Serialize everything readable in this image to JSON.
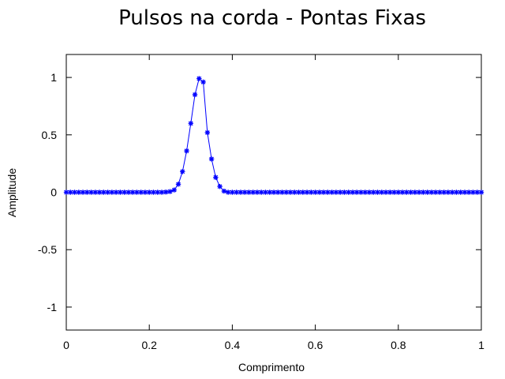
{
  "chart_data": {
    "type": "line",
    "title": "Pulsos na corda - Pontas Fixas",
    "xlabel": "Comprimento",
    "ylabel": "Amplitude",
    "xlim": [
      0,
      1
    ],
    "ylim": [
      -1.2,
      1.2
    ],
    "xticks": [
      0,
      0.2,
      0.4,
      0.6,
      0.8,
      1
    ],
    "xtick_labels": [
      "0",
      "0.2",
      "0.4",
      "0.6",
      "0.8",
      "1"
    ],
    "yticks": [
      -1,
      -0.5,
      0,
      0.5,
      1
    ],
    "ytick_labels": [
      "-1",
      "-0.5",
      "0",
      "0.5",
      "1"
    ],
    "grid": false,
    "series": [
      {
        "color": "#0000ff",
        "marker": "star",
        "x": [
          0,
          0.01,
          0.02,
          0.03,
          0.04,
          0.05,
          0.06,
          0.07,
          0.08,
          0.09,
          0.1,
          0.11,
          0.12,
          0.13,
          0.14,
          0.15,
          0.16,
          0.17,
          0.18,
          0.19,
          0.2,
          0.21,
          0.22,
          0.23,
          0.24,
          0.25,
          0.26,
          0.27,
          0.28,
          0.29,
          0.3,
          0.31,
          0.32,
          0.33,
          0.34,
          0.35,
          0.36,
          0.37,
          0.38,
          0.39,
          0.4,
          0.41,
          0.42,
          0.43,
          0.44,
          0.45,
          0.46,
          0.47,
          0.48,
          0.49,
          0.5,
          0.51,
          0.52,
          0.53,
          0.54,
          0.55,
          0.56,
          0.57,
          0.58,
          0.59,
          0.6,
          0.61,
          0.62,
          0.63,
          0.64,
          0.65,
          0.66,
          0.67,
          0.68,
          0.69,
          0.7,
          0.71,
          0.72,
          0.73,
          0.74,
          0.75,
          0.76,
          0.77,
          0.78,
          0.79,
          0.8,
          0.81,
          0.82,
          0.83,
          0.84,
          0.85,
          0.86,
          0.87,
          0.88,
          0.89,
          0.9,
          0.91,
          0.92,
          0.93,
          0.94,
          0.95,
          0.96,
          0.97,
          0.98,
          0.99,
          1
        ],
        "y": [
          0,
          0,
          0,
          0,
          0,
          0,
          0,
          0,
          0,
          0,
          0,
          0,
          0,
          0,
          0,
          0,
          0,
          0,
          0,
          0,
          0,
          0,
          0,
          0,
          0.002,
          0.006,
          0.02,
          0.07,
          0.18,
          0.36,
          0.6,
          0.85,
          0.99,
          0.96,
          0.52,
          0.29,
          0.13,
          0.05,
          0.01,
          0,
          0,
          0,
          0,
          0,
          0,
          0,
          0,
          0,
          0,
          0,
          0,
          0,
          0,
          0,
          0,
          0,
          0,
          0,
          0,
          0,
          0,
          0,
          0,
          0,
          0,
          0,
          0,
          0,
          0,
          0,
          0,
          0,
          0,
          0,
          0,
          0,
          0,
          0,
          0,
          0,
          0,
          0,
          0,
          0,
          0,
          0,
          0,
          0,
          0,
          0,
          0,
          0,
          0,
          0,
          0,
          0,
          0,
          0,
          0,
          0,
          0
        ]
      }
    ]
  }
}
